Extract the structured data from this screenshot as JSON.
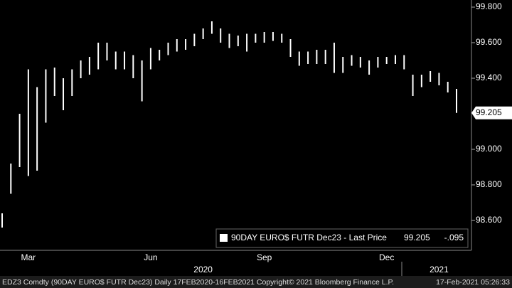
{
  "chart_data": {
    "type": "ohlc",
    "color": "#ffffff",
    "categories": [
      null,
      null,
      null,
      "Mar",
      null,
      null,
      null,
      null,
      null,
      null,
      null,
      null,
      null,
      null,
      null,
      null,
      null,
      "Jun",
      null,
      null,
      null,
      null,
      null,
      null,
      null,
      null,
      null,
      null,
      null,
      null,
      "Sep",
      null,
      null,
      null,
      null,
      null,
      null,
      null,
      null,
      null,
      null,
      null,
      null,
      null,
      "Dec",
      null,
      null,
      null,
      null,
      null,
      null,
      null,
      null
    ],
    "year_labels": [
      null,
      null,
      null,
      null,
      null,
      null,
      null,
      null,
      null,
      null,
      null,
      null,
      null,
      null,
      null,
      null,
      null,
      null,
      null,
      null,
      null,
      null,
      null,
      "2020",
      null,
      null,
      null,
      null,
      null,
      null,
      null,
      null,
      null,
      null,
      null,
      null,
      null,
      null,
      null,
      null,
      null,
      null,
      null,
      null,
      null,
      null,
      null,
      null,
      null,
      null,
      "2021",
      null,
      null
    ],
    "series": [
      {
        "name": "90DAY EURO$ FUTR  Dec23 - Last Price",
        "high": [
          98.64,
          98.92,
          99.2,
          99.45,
          99.35,
          99.45,
          99.46,
          99.4,
          99.45,
          99.5,
          99.52,
          99.6,
          99.6,
          99.55,
          99.55,
          99.53,
          99.5,
          99.57,
          99.56,
          99.6,
          99.62,
          99.62,
          99.65,
          99.68,
          99.72,
          99.68,
          99.65,
          99.64,
          99.65,
          99.65,
          99.66,
          99.66,
          99.65,
          99.62,
          99.55,
          99.55,
          99.56,
          99.56,
          99.6,
          99.52,
          99.53,
          99.52,
          99.5,
          99.52,
          99.52,
          99.53,
          99.53,
          99.42,
          99.42,
          99.44,
          99.43,
          99.38,
          99.34
        ],
        "low": [
          98.56,
          98.75,
          98.9,
          98.85,
          98.88,
          99.15,
          99.3,
          99.22,
          99.3,
          99.4,
          99.42,
          99.45,
          99.5,
          99.45,
          99.45,
          99.4,
          99.27,
          99.45,
          99.5,
          99.53,
          99.55,
          99.56,
          99.58,
          99.62,
          99.65,
          99.6,
          99.57,
          99.58,
          99.55,
          99.6,
          99.6,
          99.61,
          99.6,
          99.52,
          99.47,
          99.48,
          99.48,
          99.48,
          99.43,
          99.43,
          99.47,
          99.46,
          99.42,
          99.46,
          99.48,
          99.48,
          99.45,
          99.3,
          99.35,
          99.38,
          99.36,
          99.32,
          99.205
        ]
      }
    ],
    "last_price": 99.205,
    "change": "-.095",
    "ylim": [
      98.432,
      99.84
    ],
    "yticks": [
      {
        "value": 98.6,
        "label": "98.600"
      },
      {
        "value": 98.8,
        "label": "98.800"
      },
      {
        "value": 99.0,
        "label": "99.000"
      },
      {
        "value": 99.4,
        "label": "99.400"
      },
      {
        "value": 99.6,
        "label": "99.600"
      },
      {
        "value": 99.8,
        "label": "99.800"
      }
    ],
    "grid": false,
    "footer": "EDZ3 Comdty (90DAY EURO$ FUTR  Dec23)  Daily 17FEB2020-16FEB2021  Copyright© 2021 Bloomberg Finance L.P.",
    "timestamp": "17-Feb-2021 05:26:33"
  }
}
